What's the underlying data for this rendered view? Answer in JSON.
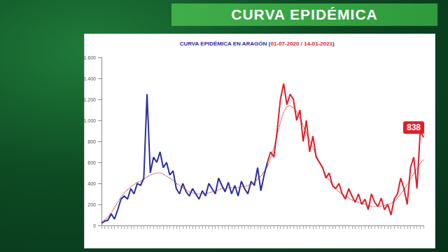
{
  "header": "CURVA EPIDÉMICA",
  "chart_data": {
    "type": "line",
    "title": "CURVA EPIDÉMICA EN ARAGÓN (01-07-2020 / 14-01-2021)",
    "categories": [
      null,
      null,
      null,
      null,
      null,
      null,
      null,
      null,
      null,
      null,
      null,
      null,
      null,
      null,
      null,
      null,
      null,
      null,
      null,
      null,
      null,
      null,
      null,
      null,
      null,
      null,
      null,
      null,
      null,
      null,
      null,
      null,
      null,
      null,
      null,
      null,
      null,
      null,
      null,
      null,
      null,
      null,
      null,
      null,
      null,
      null,
      null,
      null,
      null,
      null,
      null,
      null,
      null,
      null,
      null,
      null,
      null,
      null,
      null,
      null,
      null,
      null,
      null,
      null,
      null,
      null,
      null,
      null,
      null,
      null,
      null,
      null,
      null,
      null,
      null,
      null,
      null,
      null,
      null,
      null,
      null,
      null,
      null,
      null,
      null,
      null,
      null,
      null,
      null,
      null,
      null,
      null,
      null,
      null,
      null,
      null,
      null,
      null,
      null,
      null
    ],
    "series": [
      {
        "color": "#2b2f9e",
        "line_style": "solid",
        "values": [
          20,
          40,
          50,
          110,
          60,
          150,
          250,
          280,
          250,
          350,
          300,
          400,
          380,
          450,
          1250,
          500,
          650,
          600,
          700,
          550,
          600,
          480,
          520,
          350,
          300,
          400,
          320,
          280,
          350,
          300,
          250,
          330,
          280,
          400,
          350,
          300,
          450,
          380,
          320,
          410,
          300,
          380,
          280,
          420,
          350,
          300,
          420,
          380,
          550,
          330,
          480,
          600,
          null,
          null,
          null,
          null,
          null,
          null,
          null,
          null,
          null,
          null,
          null,
          null,
          null,
          null,
          null,
          null,
          null,
          null,
          null,
          null,
          null,
          null,
          null,
          null,
          null,
          null,
          null,
          null,
          null,
          null,
          null,
          null,
          null,
          null,
          null,
          null,
          null,
          null,
          null,
          null,
          null,
          null,
          null,
          null,
          null,
          null,
          null,
          null
        ]
      },
      {
        "color": "#e0202a",
        "line_style": "solid",
        "values": [
          null,
          null,
          null,
          null,
          null,
          null,
          null,
          null,
          null,
          null,
          null,
          null,
          null,
          null,
          null,
          null,
          null,
          null,
          null,
          null,
          null,
          null,
          null,
          null,
          null,
          null,
          null,
          null,
          null,
          null,
          null,
          null,
          null,
          null,
          null,
          null,
          null,
          null,
          null,
          null,
          null,
          null,
          null,
          null,
          null,
          null,
          null,
          null,
          null,
          null,
          null,
          600,
          700,
          650,
          900,
          1200,
          1350,
          1150,
          1250,
          1200,
          1000,
          1100,
          800,
          1000,
          700,
          850,
          650,
          600,
          550,
          450,
          500,
          380,
          350,
          400,
          300,
          250,
          350,
          280,
          220,
          300,
          200,
          250,
          150,
          300,
          220,
          180,
          260,
          150,
          200,
          100,
          250,
          300,
          450,
          350,
          200,
          550,
          650,
          350,
          900,
          838
        ]
      },
      {
        "color": "#a0282c",
        "line_style": "dotted",
        "values": [
          30,
          50,
          80,
          120,
          170,
          220,
          270,
          310,
          340,
          370,
          390,
          410,
          420,
          440,
          460,
          480,
          490,
          500,
          500,
          490,
          470,
          450,
          430,
          400,
          380,
          360,
          340,
          320,
          310,
          300,
          300,
          300,
          300,
          310,
          320,
          330,
          340,
          350,
          350,
          360,
          360,
          360,
          360,
          370,
          370,
          380,
          390,
          410,
          440,
          470,
          510,
          560,
          640,
          740,
          860,
          980,
          1080,
          1130,
          1140,
          1120,
          1080,
          1020,
          950,
          880,
          810,
          740,
          670,
          600,
          540,
          480,
          430,
          390,
          350,
          320,
          300,
          280,
          260,
          240,
          230,
          220,
          210,
          200,
          190,
          180,
          180,
          180,
          180,
          190,
          200,
          210,
          230,
          260,
          300,
          340,
          390,
          440,
          490,
          540,
          590,
          630
        ]
      }
    ],
    "annotations": [
      {
        "text": "838",
        "x": 99,
        "y": 838,
        "color": "#e0202a"
      }
    ],
    "ylim": [
      0,
      1600
    ],
    "yticks": [
      0,
      200,
      400,
      600,
      800,
      {
        "value": 1000,
        "label": "1.000"
      },
      {
        "value": 1200,
        "label": "1.200"
      },
      {
        "value": 1400,
        "label": "1.400"
      },
      {
        "value": 1600,
        "label": "1.600"
      }
    ],
    "grid": false,
    "tick_labels": "y"
  }
}
